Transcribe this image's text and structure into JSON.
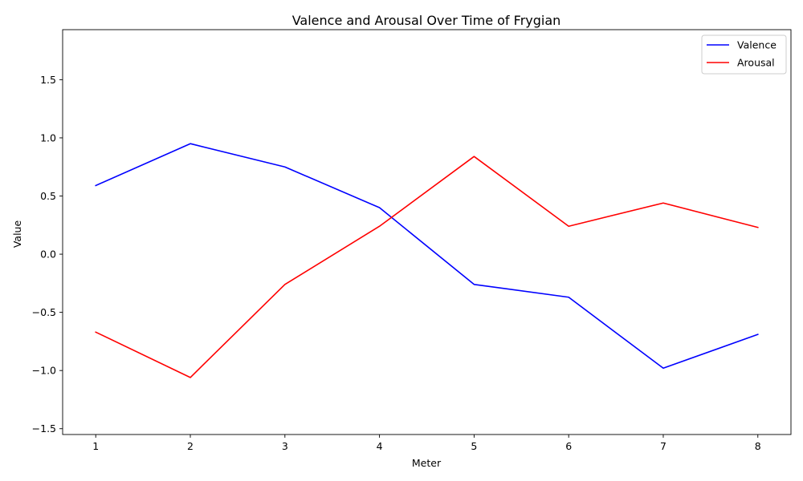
{
  "chart_data": {
    "type": "line",
    "title": "Valence and Arousal Over Time of Frygian",
    "xlabel": "Meter",
    "ylabel": "Value",
    "x": [
      1,
      2,
      3,
      4,
      5,
      6,
      7,
      8
    ],
    "xlim": [
      0.65,
      8.35
    ],
    "ylim": [
      -1.55,
      1.93
    ],
    "xticks": [
      1,
      2,
      3,
      4,
      5,
      6,
      7,
      8
    ],
    "yticks": [
      -1.5,
      -1.0,
      -0.5,
      0.0,
      0.5,
      1.0,
      1.5
    ],
    "xtick_labels": [
      "1",
      "2",
      "3",
      "4",
      "5",
      "6",
      "7",
      "8"
    ],
    "ytick_labels": [
      "−1.5",
      "−1.0",
      "−0.5",
      "0.0",
      "0.5",
      "1.0",
      "1.5"
    ],
    "grid": false,
    "legend_position": "top-right",
    "series": [
      {
        "name": "Valence",
        "color": "#0000ff",
        "values": [
          0.59,
          0.95,
          0.75,
          0.4,
          -0.26,
          -0.37,
          -0.98,
          -0.69
        ]
      },
      {
        "name": "Arousal",
        "color": "#ff0000",
        "values": [
          -0.67,
          -1.06,
          -0.26,
          0.24,
          0.84,
          0.24,
          0.44,
          0.23
        ]
      }
    ]
  }
}
